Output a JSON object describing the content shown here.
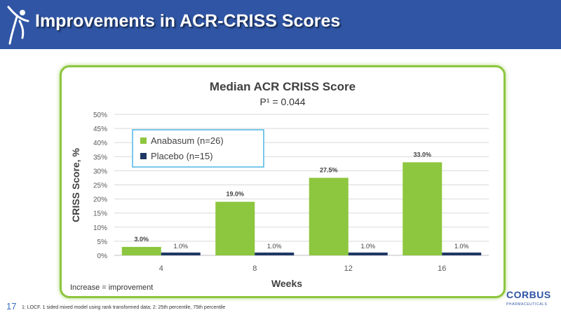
{
  "slide": {
    "title": "Improvements in ACR-CRISS Scores",
    "page_number": "17",
    "footnote": "1: LOCF. 1 sided mixed model using rank transformed data; 2: 25th percentile, 75th percentile",
    "note": "Increase = improvement",
    "logo": {
      "name": "CORBUS",
      "tagline": "PHARMACEUTICALS"
    }
  },
  "colors": {
    "header": "#2f55a4",
    "frame": "#8dc63f",
    "anabasum": "#8dc63f",
    "placebo": "#1f3864",
    "legend_border": "#4db6e3"
  },
  "chart_data": {
    "type": "bar",
    "title": "Median ACR CRISS Score",
    "subtitle": "P¹ = 0.044",
    "xlabel": "Weeks",
    "ylabel": "CRISS Score, %",
    "categories": [
      "4",
      "8",
      "12",
      "16"
    ],
    "ylim": [
      0,
      50
    ],
    "yticks": [
      "0%",
      "5%",
      "10%",
      "15%",
      "20%",
      "25%",
      "30%",
      "35%",
      "40%",
      "45%",
      "50%"
    ],
    "grid": true,
    "legend_position": "top-left",
    "series": [
      {
        "name": "Anabasum (n=26)",
        "values": [
          3.0,
          19.0,
          27.5,
          33.0
        ],
        "labels": [
          "3.0%",
          "19.0%",
          "27.5%",
          "33.0%"
        ]
      },
      {
        "name": "Placebo (n=15)",
        "values": [
          1.0,
          1.0,
          1.0,
          1.0
        ],
        "labels": [
          "1.0%",
          "1.0%",
          "1.0%",
          "1.0%"
        ]
      }
    ]
  }
}
